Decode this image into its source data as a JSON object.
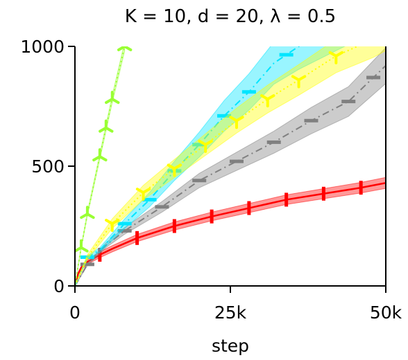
{
  "chart_data": {
    "type": "line",
    "title": "K = 10, d = 20, λ = 0.5",
    "xlabel": "step",
    "ylabel": "",
    "xlim": [
      0,
      50000
    ],
    "ylim": [
      0,
      1000
    ],
    "x_ticks": [
      0,
      25000,
      50000
    ],
    "x_tick_labels": [
      "0",
      "25k",
      "50k"
    ],
    "y_ticks": [
      0,
      500,
      1000
    ],
    "y_tick_labels": [
      "0",
      "500",
      "1000"
    ],
    "grid": false,
    "legend": "none",
    "series": [
      {
        "color": "#ff0000",
        "line": "solid",
        "marker": "vertical-bar",
        "x": [
          0,
          500,
          1000,
          2000,
          4000,
          6000,
          10000,
          16000,
          22000,
          28000,
          34000,
          40000,
          46000,
          50000
        ],
        "y": [
          0,
          50,
          75,
          100,
          130,
          155,
          200,
          250,
          290,
          325,
          360,
          385,
          410,
          430
        ],
        "band": [
          0,
          6,
          8,
          10,
          12,
          13,
          15,
          17,
          18,
          19,
          20,
          21,
          22,
          23
        ],
        "marker_x": [
          4000,
          10000,
          16000,
          22000,
          28000,
          34000,
          40000,
          46000
        ]
      },
      {
        "color": "#808080",
        "line": "dashdot",
        "marker": "horizontal-bar",
        "x": [
          0,
          2000,
          5000,
          8000,
          14000,
          20000,
          26000,
          32000,
          38000,
          44000,
          50000
        ],
        "y": [
          0,
          90,
          170,
          230,
          330,
          440,
          520,
          600,
          690,
          770,
          920
        ],
        "band": [
          0,
          5,
          10,
          14,
          22,
          30,
          38,
          46,
          55,
          62,
          75
        ],
        "marker_x": [
          2000,
          8000,
          14000,
          20000,
          26000,
          32000,
          38000,
          44000,
          48000
        ]
      },
      {
        "color": "#00e5ff",
        "line": "dashdot",
        "marker": "horizontal-bar",
        "x": [
          0,
          2000,
          4000,
          8000,
          12000,
          16000,
          20000,
          24000,
          28000,
          32000,
          36000,
          40000,
          44000
        ],
        "y": [
          0,
          120,
          150,
          260,
          360,
          480,
          590,
          710,
          810,
          930,
          1000,
          1060,
          1120
        ],
        "band": [
          0,
          6,
          10,
          20,
          30,
          40,
          52,
          64,
          76,
          88,
          96,
          104,
          112
        ],
        "marker_x": [
          2000,
          8000,
          12000,
          16000,
          20000,
          24000,
          28000,
          34000,
          40000
        ]
      },
      {
        "color": "#ffff00",
        "line": "dotted",
        "marker": "tri-down",
        "x": [
          0,
          2000,
          6000,
          11000,
          16000,
          21000,
          26000,
          31000,
          36000,
          42000,
          48000,
          50000
        ],
        "y": [
          0,
          120,
          260,
          390,
          490,
          590,
          690,
          780,
          860,
          960,
          1030,
          1060
        ],
        "band": [
          0,
          10,
          20,
          30,
          38,
          45,
          52,
          58,
          64,
          70,
          76,
          78
        ],
        "marker_x": [
          6000,
          11000,
          16000,
          21000,
          26000,
          31000,
          36000,
          42000
        ]
      },
      {
        "color": "#99ff33",
        "line": "dotted",
        "marker": "tri-up",
        "x": [
          0,
          1000,
          2000,
          4000,
          5000,
          6000,
          8000
        ],
        "y": [
          0,
          160,
          300,
          540,
          660,
          780,
          1000
        ],
        "band": [
          0,
          6,
          8,
          12,
          14,
          16,
          20
        ],
        "marker_x": [
          1000,
          2000,
          4000,
          5000,
          6000,
          8000
        ]
      }
    ]
  }
}
